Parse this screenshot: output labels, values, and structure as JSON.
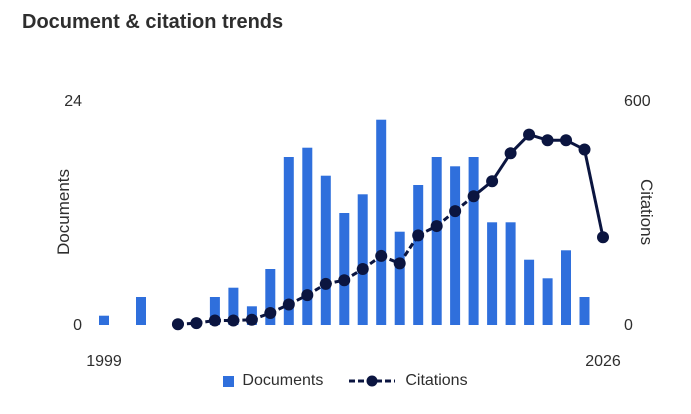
{
  "title": "Document & citation trends",
  "chart_data": {
    "type": "bar",
    "title": "Document & citation trends",
    "x_start_label": "1999",
    "x_end_label": "2026",
    "years": [
      1999,
      2000,
      2001,
      2002,
      2003,
      2004,
      2005,
      2006,
      2007,
      2008,
      2009,
      2010,
      2011,
      2012,
      2013,
      2014,
      2015,
      2016,
      2017,
      2018,
      2019,
      2020,
      2021,
      2022,
      2023,
      2024,
      2025,
      2026
    ],
    "left_axis": {
      "label": "Documents",
      "min_label": "0",
      "max_label": "24",
      "min": 0,
      "max": 24
    },
    "right_axis": {
      "label": "Citations",
      "min_label": "0",
      "max_label": "600",
      "min": 0,
      "max": 600
    },
    "series": [
      {
        "name": "Documents",
        "type": "bar",
        "axis": "left",
        "color": "#2f6fdc",
        "values": [
          1,
          0,
          3,
          0,
          0,
          0,
          3,
          4,
          2,
          6,
          18,
          19,
          16,
          12,
          14,
          22,
          10,
          15,
          18,
          17,
          18,
          11,
          11,
          7,
          5,
          8,
          3,
          0
        ]
      },
      {
        "name": "Citations",
        "type": "line",
        "axis": "right",
        "color": "#0b1540",
        "values": [
          null,
          null,
          null,
          null,
          2,
          5,
          12,
          12,
          14,
          32,
          55,
          80,
          110,
          120,
          150,
          185,
          165,
          240,
          265,
          305,
          345,
          385,
          460,
          510,
          495,
          495,
          470,
          235
        ]
      }
    ],
    "grid": false,
    "legend": "bottom-center"
  }
}
